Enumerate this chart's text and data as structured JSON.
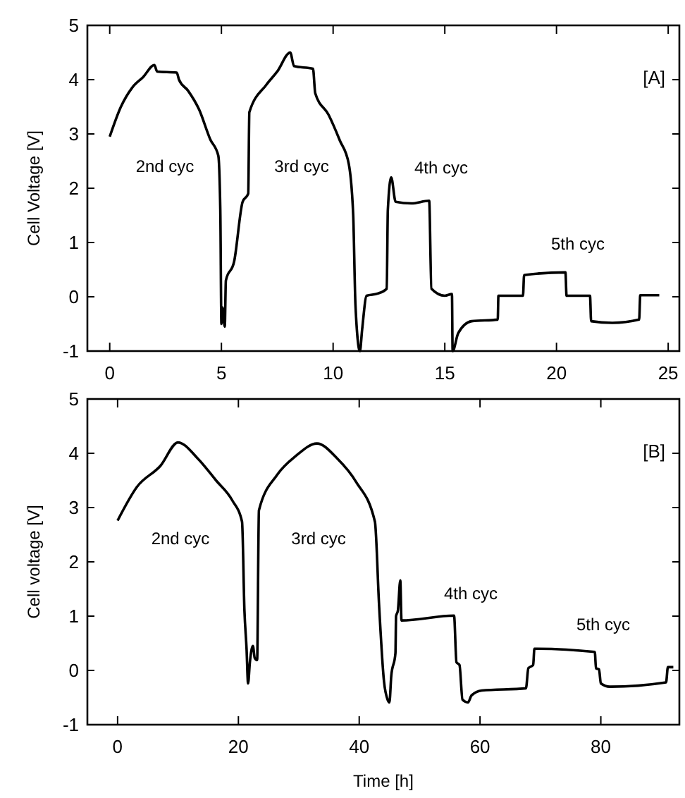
{
  "chart_data": [
    {
      "type": "line",
      "ylabel": "Cell Voltage [V]",
      "xlim": [
        -1,
        25.5
      ],
      "ylim": [
        -1,
        5
      ],
      "xticks": [
        0,
        5,
        10,
        15,
        20,
        25
      ],
      "yticks": [
        -1,
        0,
        1,
        2,
        3,
        4,
        5
      ],
      "annotations": [
        "2nd cyc",
        "3rd cyc",
        "4th cyc",
        "5th cyc",
        "[A]"
      ],
      "series": [
        {
          "color": "#000000",
          "x": [
            0,
            0.5,
            1,
            1.5,
            2.0,
            2.12,
            3.0,
            3.1,
            3.5,
            4.0,
            4.5,
            4.86,
            4.95,
            5.0,
            5.05,
            5.15,
            5.2,
            5.57,
            5.95,
            6.2,
            6.25,
            7.0,
            7.5,
            8.08,
            8.25,
            9.1,
            9.2,
            9.8,
            10.3,
            10.7,
            10.9,
            11.0,
            11.2,
            11.3,
            11.5,
            12.0,
            12.4,
            12.45,
            12.6,
            12.8,
            13.5,
            14.3,
            14.4,
            15.0,
            15.32,
            15.35,
            15.6,
            16.2,
            17.37,
            17.4,
            18.5,
            18.55,
            20.4,
            20.45,
            21.5,
            21.55,
            22.5,
            23.7,
            23.75,
            24.6
          ],
          "values": [
            2.95,
            3.5,
            3.85,
            4.05,
            4.27,
            4.15,
            4.13,
            4.0,
            3.8,
            3.45,
            2.9,
            2.6,
            1.6,
            -0.5,
            -0.2,
            -0.55,
            0.3,
            0.65,
            1.75,
            1.9,
            3.4,
            3.9,
            4.15,
            4.5,
            4.25,
            4.2,
            3.75,
            3.35,
            2.88,
            2.45,
            1.5,
            -0.15,
            -1.0,
            -0.6,
            0.02,
            0.06,
            0.15,
            1.6,
            2.2,
            1.75,
            1.72,
            1.77,
            0.15,
            0.02,
            0.05,
            -1.0,
            -0.67,
            -0.45,
            -0.42,
            0.02,
            0.02,
            0.4,
            0.45,
            0.02,
            0.02,
            -0.45,
            -0.48,
            -0.42,
            0.03,
            0.03
          ]
        }
      ]
    },
    {
      "type": "line",
      "xlabel": "Time [h]",
      "ylabel": "Cell voltage [V]",
      "xlim": [
        -5,
        93
      ],
      "ylim": [
        -1,
        5
      ],
      "xticks": [
        0,
        20,
        40,
        60,
        80
      ],
      "yticks": [
        -1,
        0,
        1,
        2,
        3,
        4,
        5
      ],
      "annotations": [
        "2nd cyc",
        "3rd cyc",
        "4th cyc",
        "5th cyc",
        "[B]"
      ],
      "series": [
        {
          "color": "#000000",
          "x": [
            0,
            3.2,
            7.1,
            10.0,
            13.3,
            16.3,
            19.0,
            20.6,
            21.0,
            21.35,
            21.6,
            21.9,
            22.4,
            22.7,
            23.1,
            23.4,
            26.4,
            29.5,
            33.0,
            36.4,
            39.5,
            42.6,
            43.3,
            44.1,
            44.7,
            45.0,
            45.3,
            46.0,
            46.1,
            46.4,
            46.8,
            47.0,
            55.7,
            56.1,
            56.6,
            57.1,
            58.0,
            58.6,
            60.3,
            67.6,
            68.0,
            68.8,
            69.0,
            79.0,
            79.2,
            79.7,
            80.0,
            81.5,
            90.8,
            91.1,
            92.0
          ],
          "values": [
            2.76,
            3.38,
            3.77,
            4.2,
            3.9,
            3.5,
            3.13,
            2.74,
            1.1,
            0.4,
            -0.24,
            0.15,
            0.45,
            0.23,
            0.19,
            2.95,
            3.6,
            3.95,
            4.18,
            3.9,
            3.47,
            2.74,
            1.18,
            -0.2,
            -0.54,
            -0.59,
            -0.11,
            0.32,
            1.0,
            1.1,
            1.66,
            0.92,
            1.01,
            0.15,
            0.1,
            -0.54,
            -0.59,
            -0.46,
            -0.37,
            -0.33,
            0.04,
            0.1,
            0.4,
            0.34,
            0.04,
            0.02,
            -0.24,
            -0.3,
            -0.22,
            0.06,
            0.06
          ]
        }
      ]
    }
  ]
}
